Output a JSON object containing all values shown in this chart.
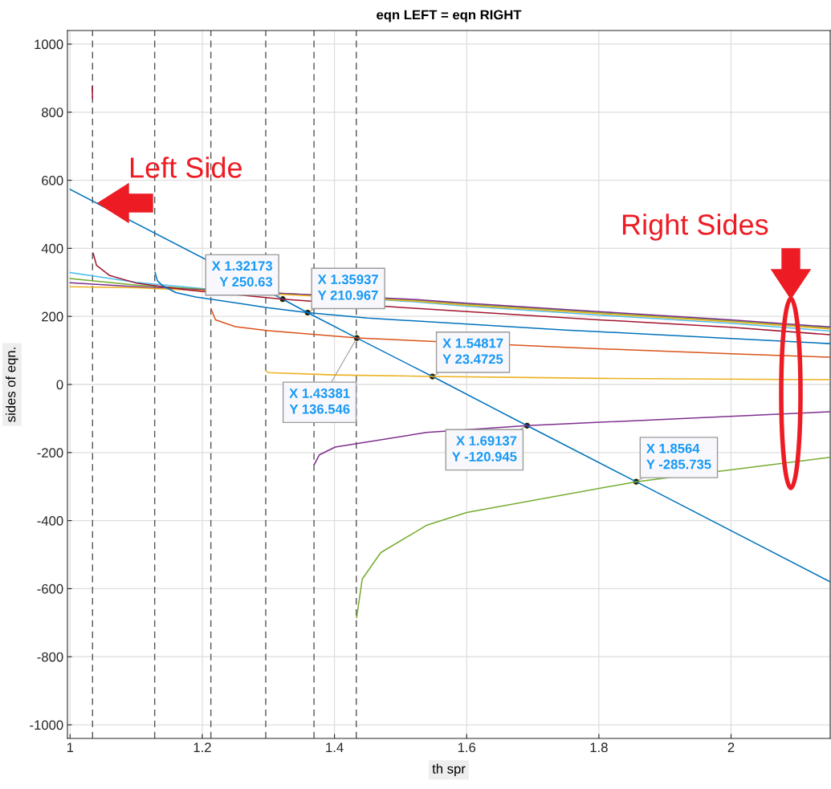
{
  "chart_data": {
    "type": "line",
    "title": "eqn LEFT = eqn RIGHT",
    "xlabel": "th spr",
    "ylabel": "sides of eqn.",
    "xlim": [
      0.996,
      2.15
    ],
    "ylim": [
      -1040,
      1040
    ],
    "xticks": [
      1,
      1.2,
      1.4,
      1.6,
      1.8,
      2
    ],
    "yticks": [
      -1000,
      -800,
      -600,
      -400,
      -200,
      0,
      200,
      400,
      600,
      800,
      1000
    ],
    "grid": true,
    "line_style": "solid",
    "series": [
      {
        "color": "#0072bd",
        "x": [
          1.0,
          1.32173,
          1.35937,
          1.43381,
          1.54817,
          1.69137,
          1.8564,
          2.15
        ],
        "values": [
          573,
          250.63,
          210.967,
          136.546,
          23.4725,
          -120.945,
          -285.735,
          -580
        ]
      },
      {
        "color": "#4dbeee",
        "x": [
          1.0,
          1.1,
          1.2,
          1.52,
          1.6,
          1.8,
          2.0,
          2.15
        ],
        "values": [
          329,
          300,
          282,
          243,
          230,
          204,
          180,
          157
        ]
      },
      {
        "color": "#77ac30",
        "x": [
          1.0,
          1.1,
          1.2,
          1.52,
          1.6,
          1.8,
          2.0,
          2.15
        ],
        "values": [
          311,
          292,
          280,
          247,
          236,
          211,
          187,
          166
        ]
      },
      {
        "color": "#7e2f8e",
        "x": [
          1.0,
          1.1,
          1.2,
          1.52,
          1.6,
          1.8,
          2.0,
          2.15
        ],
        "values": [
          299,
          287,
          278,
          250,
          239,
          214,
          190,
          169
        ]
      },
      {
        "color": "#edb120",
        "x": [
          1.0,
          1.1,
          1.2,
          1.52,
          1.6,
          1.8,
          2.0,
          2.15
        ],
        "values": [
          287,
          284,
          276,
          245,
          233,
          208,
          184,
          163
        ]
      },
      {
        "color": "#a2142f",
        "x": [
          1.0335,
          1.034
        ],
        "values": [
          875,
          840
        ]
      },
      {
        "color": "#a2142f",
        "x": [
          1.035,
          1.04,
          1.06,
          1.1,
          1.15,
          1.18,
          1.32173,
          1.52,
          1.8,
          2.0,
          2.15
        ],
        "values": [
          385,
          350,
          320,
          298,
          285,
          277,
          250.63,
          224,
          190,
          168,
          146
        ]
      },
      {
        "color": "#0072bd",
        "x": [
          1.1285,
          1.132,
          1.14,
          1.16,
          1.19,
          1.25,
          1.3,
          1.35937,
          1.45,
          1.75,
          1.8,
          2.0,
          2.15
        ],
        "values": [
          330,
          305,
          290,
          270,
          257,
          240,
          225,
          210.967,
          195,
          160,
          155,
          135,
          120
        ]
      },
      {
        "color": "#d95319",
        "x": [
          1.2135,
          1.22,
          1.25,
          1.3,
          1.43381,
          1.75,
          1.8,
          2.0,
          2.15
        ],
        "values": [
          221,
          190,
          170,
          158,
          136.546,
          109,
          105,
          90,
          80
        ]
      },
      {
        "color": "#edb120",
        "x": [
          1.2965,
          1.3,
          1.4,
          1.54817,
          1.8,
          2.15
        ],
        "values": [
          40,
          35,
          28,
          23.4725,
          18,
          14
        ]
      },
      {
        "color": "#7e2f8e",
        "x": [
          1.3695,
          1.377,
          1.401,
          1.539,
          1.69137,
          2.15
        ],
        "values": [
          -235,
          -207,
          -184,
          -141,
          -120.945,
          -80
        ]
      },
      {
        "color": "#77ac30",
        "x": [
          1.4335,
          1.442,
          1.47,
          1.539,
          1.6,
          1.8564,
          2.15
        ],
        "values": [
          -685,
          -572,
          -494,
          -414,
          -376,
          -285.735,
          -214
        ]
      }
    ],
    "ref_lines": [
      {
        "axis": "x",
        "value": 1.034,
        "color": "#555555",
        "line_style": "dashed"
      },
      {
        "axis": "x",
        "value": 1.128,
        "color": "#555555",
        "line_style": "dashed"
      },
      {
        "axis": "x",
        "value": 1.213,
        "color": "#555555",
        "line_style": "dashed"
      },
      {
        "axis": "x",
        "value": 1.296,
        "color": "#555555",
        "line_style": "dashed"
      },
      {
        "axis": "x",
        "value": 1.369,
        "color": "#555555",
        "line_style": "dashed"
      },
      {
        "axis": "x",
        "value": 1.433,
        "color": "#555555",
        "line_style": "dashed"
      }
    ],
    "annotations": [
      {
        "text": "X 1.32173\nY 250.63",
        "x": 1.32173,
        "y": 250.63
      },
      {
        "text": "X 1.35937\nY 210.967",
        "x": 1.35937,
        "y": 210.967
      },
      {
        "text": "X 1.43381\nY 136.546",
        "x": 1.43381,
        "y": 136.546
      },
      {
        "text": "X 1.54817\nY 23.4725",
        "x": 1.54817,
        "y": 23.4725
      },
      {
        "text": "X 1.69137\nY -120.945",
        "x": 1.69137,
        "y": -120.945
      },
      {
        "text": "X 1.8564\nY -285.735",
        "x": 1.8564,
        "y": -285.735
      },
      "Left Side",
      "Right Sides"
    ]
  }
}
